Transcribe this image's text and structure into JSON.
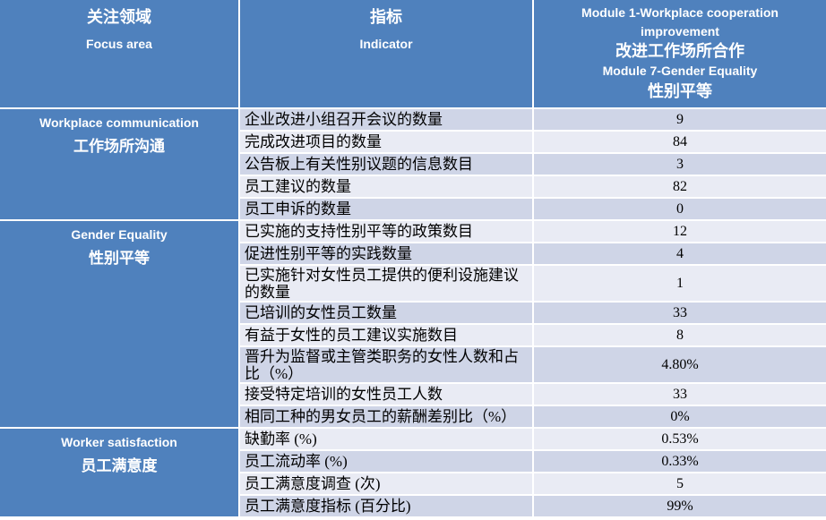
{
  "table": {
    "header": {
      "focus_area": {
        "zh": "关注领域",
        "en": "Focus area"
      },
      "indicator": {
        "zh": "指标",
        "en": "Indicator"
      },
      "module_lines": [
        {
          "text": "Module 1-Workplace cooperation",
          "lang": "en"
        },
        {
          "text": "improvement",
          "lang": "en"
        },
        {
          "text": "改进工作场所合作",
          "lang": "zh"
        },
        {
          "text": "Module 7-Gender Equality",
          "lang": "en"
        },
        {
          "text": "性别平等",
          "lang": "zh"
        }
      ]
    },
    "groups": [
      {
        "name_en": "Workplace communication",
        "name_zh": "工作场所沟通",
        "rows": [
          {
            "indicator": "企业改进小组召开会议的数量",
            "value": "9"
          },
          {
            "indicator": "完成改进项目的数量",
            "value": "84"
          },
          {
            "indicator": "公告板上有关性别议题的信息数目",
            "value": "3"
          },
          {
            "indicator": "员工建议的数量",
            "value": "82"
          },
          {
            "indicator": "员工申诉的数量",
            "value": "0"
          }
        ]
      },
      {
        "name_en": "Gender Equality",
        "name_zh": "性别平等",
        "rows": [
          {
            "indicator": "已实施的支持性别平等的政策数目",
            "value": "12"
          },
          {
            "indicator": "促进性别平等的实践数量",
            "value": "4"
          },
          {
            "indicator": "已实施针对女性员工提供的便利设施建议的数量",
            "value": "1"
          },
          {
            "indicator": "已培训的女性员工数量",
            "value": "33"
          },
          {
            "indicator": "有益于女性的员工建议实施数目",
            "value": "8"
          },
          {
            "indicator": "晋升为监督或主管类职务的女性人数和占比（%）",
            "value": "4.80%"
          },
          {
            "indicator": "接受特定培训的女性员工人数",
            "value": "33"
          },
          {
            "indicator": "相同工种的男女员工的薪酬差别比（%）",
            "value": "0%"
          }
        ]
      },
      {
        "name_en": "Worker satisfaction",
        "name_zh": "员工满意度",
        "rows": [
          {
            "indicator": "缺勤率 (%)",
            "value": "0.53%"
          },
          {
            "indicator": "员工流动率 (%)",
            "value": "0.33%"
          },
          {
            "indicator": "员工满意度调查 (次)",
            "value": "5"
          },
          {
            "indicator": "员工满意度指标 (百分比)",
            "value": "99%"
          }
        ]
      }
    ]
  },
  "colors": {
    "header_blue": "#4f81bd",
    "row_dark": "#cfd5e7",
    "row_light": "#e9ebf4",
    "grid_line": "#ffffff",
    "header_text": "#ffffff",
    "body_text": "#000000"
  }
}
